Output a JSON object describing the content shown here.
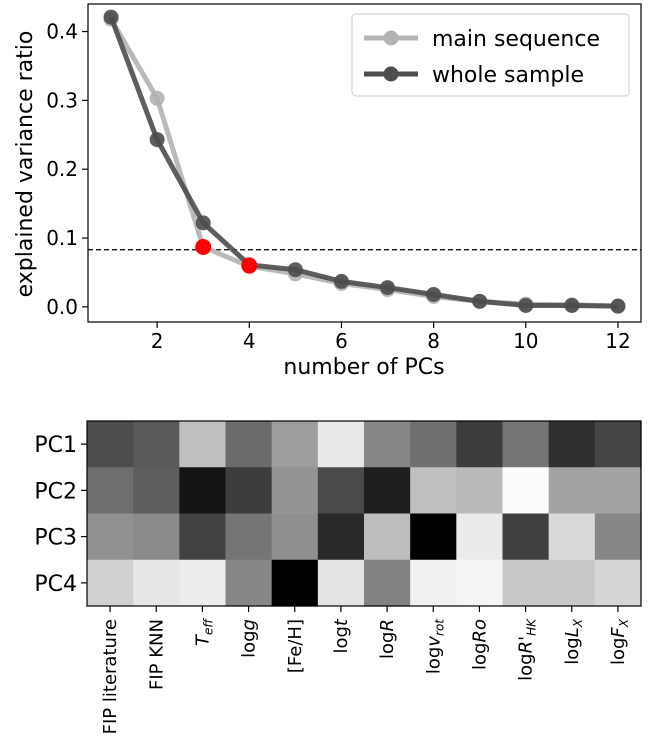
{
  "chart_data": [
    {
      "type": "line",
      "xlabel": "number of PCs",
      "ylabel": "explained variance ratio",
      "xlim": [
        0.5,
        12.5
      ],
      "ylim": [
        -0.022,
        0.44
      ],
      "x_ticks": [
        2,
        4,
        6,
        8,
        10,
        12
      ],
      "y_ticks": [
        0.0,
        0.1,
        0.2,
        0.3,
        0.4
      ],
      "y_tick_labels": [
        "0.0",
        "0.1",
        "0.2",
        "0.3",
        "0.4"
      ],
      "grid": false,
      "legend_position": "top-right",
      "threshold_line": {
        "y": 0.083,
        "style": "dashed",
        "color": "#000000"
      },
      "x": [
        1,
        2,
        3,
        4,
        5,
        6,
        7,
        8,
        9,
        10,
        11,
        12
      ],
      "series": [
        {
          "name": "main sequence",
          "color": "#b3b3b3",
          "values": [
            0.418,
            0.303,
            0.087,
            0.059,
            0.048,
            0.034,
            0.025,
            0.015,
            0.008,
            0.004,
            0.003,
            0.001
          ]
        },
        {
          "name": "whole sample",
          "color": "#4d4d4d",
          "values": [
            0.421,
            0.243,
            0.122,
            0.061,
            0.054,
            0.037,
            0.028,
            0.018,
            0.008,
            0.002,
            0.002,
            0.001
          ]
        }
      ],
      "highlighted_points": [
        {
          "x": 3,
          "y": 0.087,
          "color": "#ff0000"
        },
        {
          "x": 4,
          "y": 0.06,
          "color": "#ff0000"
        }
      ]
    },
    {
      "type": "heatmap",
      "rows": [
        "PC1",
        "PC2",
        "PC3",
        "PC4"
      ],
      "columns": [
        {
          "main": "FIP literature",
          "sub": "",
          "italic": false
        },
        {
          "main": "FIP KNN",
          "sub": "",
          "italic": false
        },
        {
          "main": "T",
          "sub": "eff",
          "italic": true
        },
        {
          "main": "log",
          "it": "g",
          "sub": ""
        },
        {
          "main": "[Fe/H]",
          "sub": "",
          "italic": false
        },
        {
          "main": "log",
          "it": "t",
          "sub": ""
        },
        {
          "main": "log",
          "it": "R",
          "sub": ""
        },
        {
          "main": "log",
          "it": "v",
          "sub": "rot"
        },
        {
          "main": "log",
          "it": "Ro",
          "sub": ""
        },
        {
          "main": "log",
          "it": "R'",
          "sub": "HK"
        },
        {
          "main": "log",
          "it": "L",
          "sub": "X"
        },
        {
          "main": "log",
          "it": "F",
          "sub": "X"
        }
      ],
      "color_scale": "grayscale",
      "values": [
        [
          0.3,
          0.35,
          0.75,
          0.42,
          0.62,
          0.91,
          0.53,
          0.44,
          0.24,
          0.46,
          0.19,
          0.27
        ],
        [
          0.43,
          0.37,
          0.08,
          0.24,
          0.58,
          0.29,
          0.12,
          0.75,
          0.73,
          0.99,
          0.64,
          0.64
        ],
        [
          0.57,
          0.54,
          0.26,
          0.46,
          0.56,
          0.16,
          0.74,
          0.0,
          0.92,
          0.25,
          0.85,
          0.53
        ],
        [
          0.82,
          0.9,
          0.93,
          0.53,
          0.0,
          0.89,
          0.51,
          0.94,
          0.96,
          0.79,
          0.79,
          0.84
        ]
      ]
    }
  ]
}
